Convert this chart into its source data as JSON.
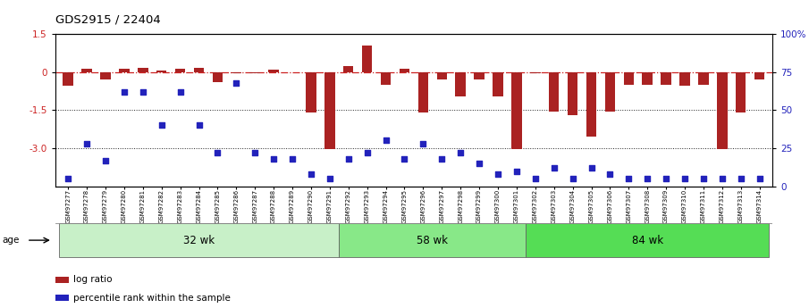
{
  "title": "GDS2915 / 22404",
  "samples": [
    "GSM97277",
    "GSM97278",
    "GSM97279",
    "GSM97280",
    "GSM97281",
    "GSM97282",
    "GSM97283",
    "GSM97284",
    "GSM97285",
    "GSM97286",
    "GSM97287",
    "GSM97288",
    "GSM97289",
    "GSM97290",
    "GSM97291",
    "GSM97292",
    "GSM97293",
    "GSM97294",
    "GSM97295",
    "GSM97296",
    "GSM97297",
    "GSM97298",
    "GSM97299",
    "GSM97300",
    "GSM97301",
    "GSM97302",
    "GSM97303",
    "GSM97304",
    "GSM97305",
    "GSM97306",
    "GSM97307",
    "GSM97308",
    "GSM97309",
    "GSM97310",
    "GSM97311",
    "GSM97312",
    "GSM97313",
    "GSM97314"
  ],
  "log_ratio": [
    -0.55,
    0.12,
    -0.3,
    0.12,
    0.18,
    0.05,
    0.12,
    0.18,
    -0.4,
    -0.05,
    -0.05,
    0.1,
    -0.03,
    -1.6,
    -3.05,
    0.22,
    1.05,
    -0.5,
    0.12,
    -1.6,
    -0.28,
    -0.95,
    -0.3,
    -0.95,
    -3.05,
    -0.05,
    -1.55,
    -1.7,
    -2.55,
    -1.55,
    -0.5,
    -0.5,
    -0.5,
    -0.55,
    -0.5,
    -3.05,
    -1.6,
    -0.3
  ],
  "percentile": [
    5,
    28,
    17,
    62,
    62,
    40,
    62,
    40,
    22,
    68,
    22,
    18,
    18,
    8,
    5,
    18,
    22,
    30,
    18,
    28,
    18,
    22,
    15,
    8,
    10,
    5,
    12,
    5,
    12,
    8,
    5,
    5,
    5,
    5,
    5,
    5,
    5,
    5
  ],
  "groups": [
    {
      "label": "32 wk",
      "start": 0,
      "end": 15,
      "color": "#c8f0c8"
    },
    {
      "label": "58 wk",
      "start": 15,
      "end": 25,
      "color": "#88e888"
    },
    {
      "label": "84 wk",
      "start": 25,
      "end": 38,
      "color": "#55dd55"
    }
  ],
  "ylim": [
    -4.5,
    1.5
  ],
  "yticks_left": [
    1.5,
    0.0,
    -1.5,
    -3.0
  ],
  "yticks_right_vals": [
    1.5,
    0.0,
    -1.5,
    -3.0,
    -4.5
  ],
  "yticks_right_labels": [
    "100%",
    "75",
    "50",
    "25",
    "0"
  ],
  "bar_color": "#aa2222",
  "dot_color": "#2222bb",
  "hline_color": "#cc2222",
  "dotted_color": "#222222",
  "background_color": "#ffffff"
}
